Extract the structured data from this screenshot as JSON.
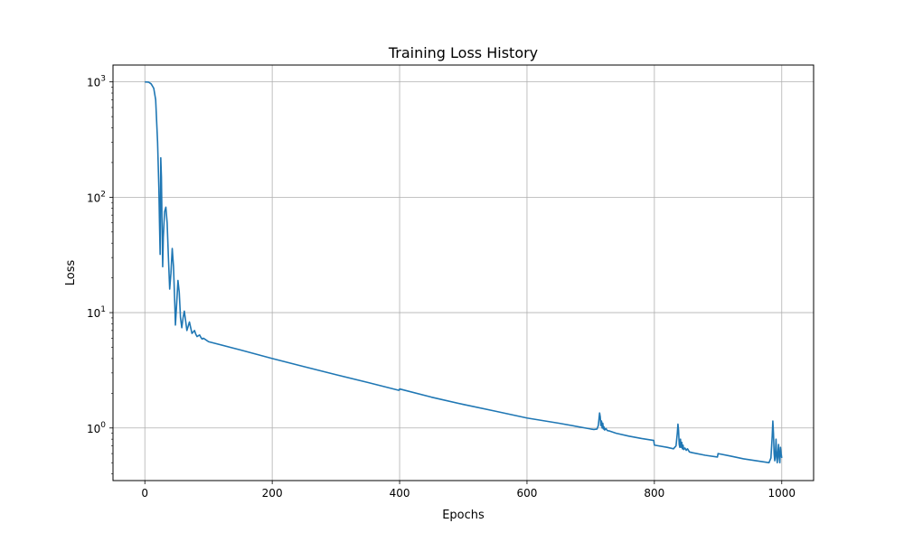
{
  "chart_data": {
    "type": "line",
    "title": "Training Loss History",
    "xlabel": "Epochs",
    "ylabel": "Loss",
    "xlim": [
      -50,
      1050
    ],
    "ylim": [
      0.35,
      1400
    ],
    "yscale": "log",
    "grid": true,
    "x_ticks": [
      {
        "value": 0,
        "label": "0"
      },
      {
        "value": 200,
        "label": "200"
      },
      {
        "value": 400,
        "label": "400"
      },
      {
        "value": 600,
        "label": "600"
      },
      {
        "value": 800,
        "label": "800"
      },
      {
        "value": 1000,
        "label": "1000"
      }
    ],
    "y_ticks": [
      {
        "value": 1,
        "base": "10",
        "exp": "0"
      },
      {
        "value": 10,
        "base": "10",
        "exp": "1"
      },
      {
        "value": 100,
        "base": "10",
        "exp": "2"
      },
      {
        "value": 1000,
        "base": "10",
        "exp": "3"
      }
    ],
    "series": [
      {
        "color": "#1f77b4",
        "points": [
          [
            0,
            1000
          ],
          [
            6,
            995
          ],
          [
            10,
            960
          ],
          [
            14,
            880
          ],
          [
            17,
            700
          ],
          [
            20,
            300
          ],
          [
            22,
            120
          ],
          [
            23,
            60
          ],
          [
            24,
            32
          ],
          [
            25,
            220
          ],
          [
            26,
            150
          ],
          [
            27,
            60
          ],
          [
            28,
            25
          ],
          [
            29,
            45
          ],
          [
            31,
            75
          ],
          [
            33,
            82
          ],
          [
            35,
            60
          ],
          [
            37,
            30
          ],
          [
            39,
            16
          ],
          [
            41,
            22
          ],
          [
            43,
            36
          ],
          [
            45,
            25
          ],
          [
            47,
            12
          ],
          [
            48,
            7.8
          ],
          [
            50,
            12
          ],
          [
            52,
            19
          ],
          [
            54,
            15
          ],
          [
            56,
            9
          ],
          [
            58,
            7.4
          ],
          [
            60,
            9
          ],
          [
            62,
            10.3
          ],
          [
            64,
            8.5
          ],
          [
            66,
            7.0
          ],
          [
            68,
            7.6
          ],
          [
            70,
            8.3
          ],
          [
            72,
            7.4
          ],
          [
            74,
            6.6
          ],
          [
            76,
            6.8
          ],
          [
            78,
            7.0
          ],
          [
            80,
            6.5
          ],
          [
            82,
            6.2
          ],
          [
            84,
            6.3
          ],
          [
            86,
            6.4
          ],
          [
            88,
            6.1
          ],
          [
            90,
            5.9
          ],
          [
            92,
            6.0
          ],
          [
            95,
            5.85
          ],
          [
            100,
            5.6
          ],
          [
            150,
            4.75
          ],
          [
            200,
            4.0
          ],
          [
            250,
            3.4
          ],
          [
            300,
            2.9
          ],
          [
            350,
            2.48
          ],
          [
            399,
            2.12
          ],
          [
            400,
            2.18
          ],
          [
            450,
            1.85
          ],
          [
            500,
            1.6
          ],
          [
            550,
            1.4
          ],
          [
            600,
            1.22
          ],
          [
            650,
            1.1
          ],
          [
            700,
            0.98
          ],
          [
            705,
            0.97
          ],
          [
            710,
            0.98
          ],
          [
            712,
            1.05
          ],
          [
            714,
            1.35
          ],
          [
            715,
            1.25
          ],
          [
            716,
            1.05
          ],
          [
            717,
            1.15
          ],
          [
            718,
            1.0
          ],
          [
            719,
            1.1
          ],
          [
            720,
            0.98
          ],
          [
            721,
            1.02
          ],
          [
            722,
            0.96
          ],
          [
            724,
            0.99
          ],
          [
            726,
            0.95
          ],
          [
            730,
            0.94
          ],
          [
            740,
            0.9
          ],
          [
            760,
            0.85
          ],
          [
            780,
            0.81
          ],
          [
            799,
            0.78
          ],
          [
            800,
            0.71
          ],
          [
            820,
            0.68
          ],
          [
            830,
            0.66
          ],
          [
            834,
            0.7
          ],
          [
            836,
            0.9
          ],
          [
            837,
            1.08
          ],
          [
            838,
            0.95
          ],
          [
            839,
            0.72
          ],
          [
            840,
            0.68
          ],
          [
            841,
            0.8
          ],
          [
            842,
            0.68
          ],
          [
            843,
            0.75
          ],
          [
            844,
            0.66
          ],
          [
            845,
            0.71
          ],
          [
            846,
            0.65
          ],
          [
            848,
            0.67
          ],
          [
            850,
            0.64
          ],
          [
            852,
            0.66
          ],
          [
            855,
            0.62
          ],
          [
            860,
            0.61
          ],
          [
            880,
            0.58
          ],
          [
            899,
            0.56
          ],
          [
            900,
            0.6
          ],
          [
            920,
            0.57
          ],
          [
            940,
            0.54
          ],
          [
            960,
            0.52
          ],
          [
            980,
            0.5
          ],
          [
            983,
            0.55
          ],
          [
            985,
            0.85
          ],
          [
            986,
            1.15
          ],
          [
            987,
            0.9
          ],
          [
            988,
            0.6
          ],
          [
            989,
            0.52
          ],
          [
            990,
            0.6
          ],
          [
            991,
            0.8
          ],
          [
            992,
            0.55
          ],
          [
            993,
            0.5
          ],
          [
            994,
            0.62
          ],
          [
            995,
            0.72
          ],
          [
            996,
            0.55
          ],
          [
            997,
            0.5
          ],
          [
            998,
            0.68
          ],
          [
            999,
            0.6
          ],
          [
            1000,
            0.55
          ]
        ]
      }
    ]
  }
}
